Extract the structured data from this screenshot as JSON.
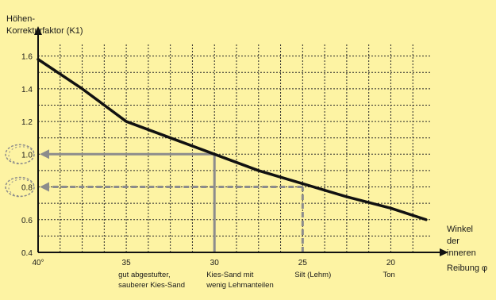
{
  "chart_data": {
    "type": "line",
    "ylabel": [
      "Höhen-",
      "Korrekturfaktor (K1)"
    ],
    "xlabel": [
      "Winkel",
      "der",
      "inneren",
      "Reibung φ"
    ],
    "xlim": [
      40,
      17.5
    ],
    "ylim": [
      0.4,
      1.7
    ],
    "xticks": [
      {
        "value": 40,
        "label": "40°"
      },
      {
        "value": 35,
        "label": "35"
      },
      {
        "value": 30,
        "label": "30"
      },
      {
        "value": 25,
        "label": "25"
      },
      {
        "value": 20,
        "label": "20"
      }
    ],
    "yticks": [
      {
        "value": 0.4,
        "label": "0.4"
      },
      {
        "value": 0.6,
        "label": "0.6"
      },
      {
        "value": 0.8,
        "label": "0.8"
      },
      {
        "value": 1.0,
        "label": "1.0"
      },
      {
        "value": 1.2,
        "label": "1.2"
      },
      {
        "value": 1.4,
        "label": "1.4"
      },
      {
        "value": 1.6,
        "label": "1.6"
      }
    ],
    "x_grid_step": 1.25,
    "y_grid_step": 0.1,
    "series": [
      {
        "x": [
          40,
          37.5,
          35,
          32.5,
          30,
          27.5,
          25,
          22.5,
          20,
          18
        ],
        "y": [
          1.58,
          1.4,
          1.2,
          1.1,
          1.0,
          0.9,
          0.82,
          0.74,
          0.67,
          0.6
        ]
      }
    ],
    "soil_labels": [
      {
        "x": 35,
        "lines": [
          "gut abgestufter,",
          "sauberer Kies-Sand"
        ]
      },
      {
        "x": 30,
        "lines": [
          "Kies-Sand mit",
          "wenig Lehmanteilen"
        ]
      },
      {
        "x": 25,
        "lines": [
          "Silt (Lehm)"
        ]
      },
      {
        "x": 20,
        "lines": [
          "Ton"
        ]
      }
    ],
    "readings": [
      {
        "x": 30,
        "y": 1.0,
        "style": "solid"
      },
      {
        "x": 25,
        "y": 0.8,
        "style": "dashed"
      }
    ],
    "colors": {
      "background": "#fdf3a3",
      "curve": "#111111",
      "axes": "#111111",
      "grid": "#2a2a2a",
      "reading_line": "#8c8c8c",
      "highlight_ellipse": "#8c8c8c"
    }
  }
}
